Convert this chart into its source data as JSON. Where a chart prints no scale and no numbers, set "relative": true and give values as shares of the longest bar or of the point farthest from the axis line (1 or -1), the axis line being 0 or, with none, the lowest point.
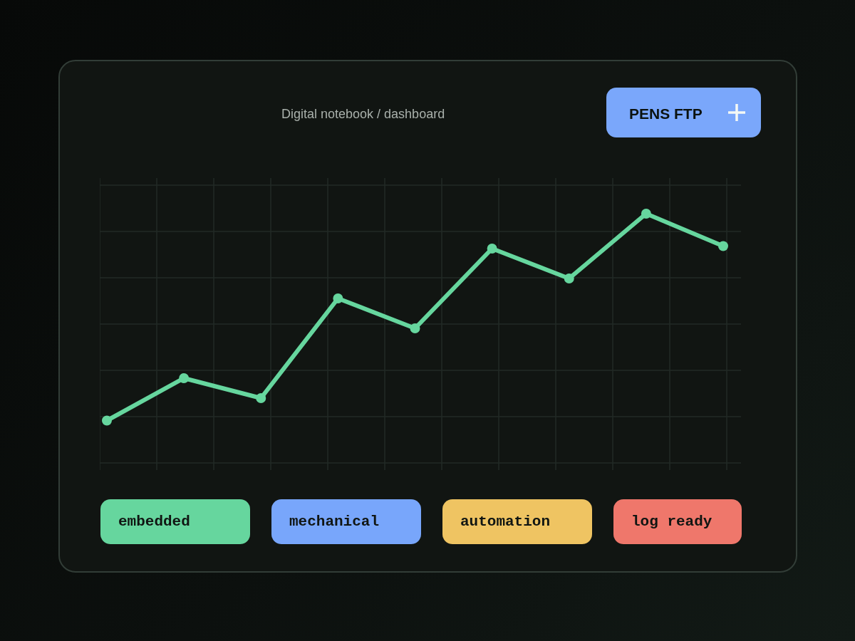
{
  "chart_data": {
    "type": "line",
    "subtitle": "Digital notebook / dashboard",
    "annotations": [
      "PENS FTP",
      "embedded",
      "mechanical",
      "automation",
      "log ready"
    ],
    "categories": [
      null,
      null,
      null,
      null,
      null,
      null,
      null,
      null,
      null
    ],
    "values": [
      0.17,
      0.34,
      0.26,
      0.66,
      0.54,
      0.86,
      0.74,
      1,
      0.87
    ],
    "color": "#66d69e",
    "relative": true,
    "grid": true,
    "marker": "circle",
    "line_style": "solid"
  }
}
